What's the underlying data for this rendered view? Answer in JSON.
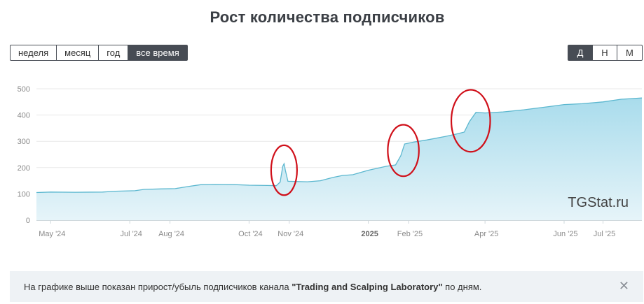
{
  "title": "Рост количества подписчиков",
  "period_buttons": [
    {
      "label": "неделя",
      "active": false
    },
    {
      "label": "месяц",
      "active": false
    },
    {
      "label": "год",
      "active": false
    },
    {
      "label": "все время",
      "active": true
    }
  ],
  "aggregation_buttons": [
    {
      "label": "Д",
      "active": true
    },
    {
      "label": "Н",
      "active": false
    },
    {
      "label": "М",
      "active": false
    }
  ],
  "watermark": "TGStat.ru",
  "info": {
    "prefix": "На графике выше показан прирост/убыль подписчиков канала ",
    "channel": "\"Trading and Scalping Laboratory\"",
    "suffix": " по дням."
  },
  "colors": {
    "line": "#5bb7cf",
    "fill_top": "#a9dcec",
    "fill_bottom": "#e6f4f9",
    "annotation": "#d0101a",
    "active_button": "#474c54"
  },
  "chart_data": {
    "type": "area",
    "x_unit": "date",
    "ylim": [
      0,
      500
    ],
    "yticks": [
      "0",
      "100",
      "200",
      "300",
      "400",
      "500"
    ],
    "xticks": [
      {
        "label": "May '24",
        "date": "2024-05-01",
        "bold": false
      },
      {
        "label": "Jul '24",
        "date": "2024-07-01",
        "bold": false
      },
      {
        "label": "Aug '24",
        "date": "2024-08-01",
        "bold": false
      },
      {
        "label": "Oct '24",
        "date": "2024-10-01",
        "bold": false
      },
      {
        "label": "Nov '24",
        "date": "2024-11-01",
        "bold": false
      },
      {
        "label": "2025",
        "date": "2025-01-01",
        "bold": true
      },
      {
        "label": "Feb '25",
        "date": "2025-02-01",
        "bold": false
      },
      {
        "label": "Apr '25",
        "date": "2025-04-01",
        "bold": false
      },
      {
        "label": "Jun '25",
        "date": "2025-06-01",
        "bold": false
      },
      {
        "label": "Jul '25",
        "date": "2025-07-01",
        "bold": false
      }
    ],
    "points": [
      [
        "2024-04-20",
        105
      ],
      [
        "2024-05-01",
        107
      ],
      [
        "2024-05-20",
        106
      ],
      [
        "2024-06-10",
        107
      ],
      [
        "2024-06-20",
        110
      ],
      [
        "2024-07-05",
        112
      ],
      [
        "2024-07-12",
        117
      ],
      [
        "2024-07-25",
        119
      ],
      [
        "2024-08-05",
        120
      ],
      [
        "2024-08-15",
        128
      ],
      [
        "2024-08-25",
        135
      ],
      [
        "2024-09-05",
        136
      ],
      [
        "2024-09-20",
        135
      ],
      [
        "2024-10-01",
        133
      ],
      [
        "2024-10-15",
        132
      ],
      [
        "2024-10-22",
        131
      ],
      [
        "2024-10-25",
        145
      ],
      [
        "2024-10-27",
        205
      ],
      [
        "2024-10-28",
        215
      ],
      [
        "2024-10-29",
        190
      ],
      [
        "2024-10-31",
        148
      ],
      [
        "2024-11-15",
        146
      ],
      [
        "2024-11-25",
        150
      ],
      [
        "2024-12-05",
        163
      ],
      [
        "2024-12-12",
        170
      ],
      [
        "2024-12-20",
        173
      ],
      [
        "2025-01-01",
        190
      ],
      [
        "2025-01-15",
        205
      ],
      [
        "2025-01-22",
        210
      ],
      [
        "2025-01-26",
        245
      ],
      [
        "2025-01-29",
        290
      ],
      [
        "2025-02-05",
        297
      ],
      [
        "2025-02-15",
        305
      ],
      [
        "2025-03-01",
        318
      ],
      [
        "2025-03-10",
        328
      ],
      [
        "2025-03-16",
        335
      ],
      [
        "2025-03-20",
        375
      ],
      [
        "2025-03-25",
        410
      ],
      [
        "2025-04-01",
        408
      ],
      [
        "2025-04-15",
        412
      ],
      [
        "2025-05-01",
        420
      ],
      [
        "2025-05-20",
        432
      ],
      [
        "2025-06-01",
        440
      ],
      [
        "2025-06-15",
        443
      ],
      [
        "2025-07-01",
        450
      ],
      [
        "2025-07-15",
        460
      ],
      [
        "2025-07-31",
        465
      ]
    ],
    "annotations": [
      {
        "shape": "ellipse",
        "date": "2024-10-28",
        "value": 190,
        "rx_days": 10,
        "ry_value": 95
      },
      {
        "shape": "ellipse",
        "date": "2025-01-28",
        "value": 265,
        "rx_days": 12,
        "ry_value": 98
      },
      {
        "shape": "ellipse",
        "date": "2025-03-21",
        "value": 378,
        "rx_days": 15,
        "ry_value": 118
      }
    ]
  }
}
